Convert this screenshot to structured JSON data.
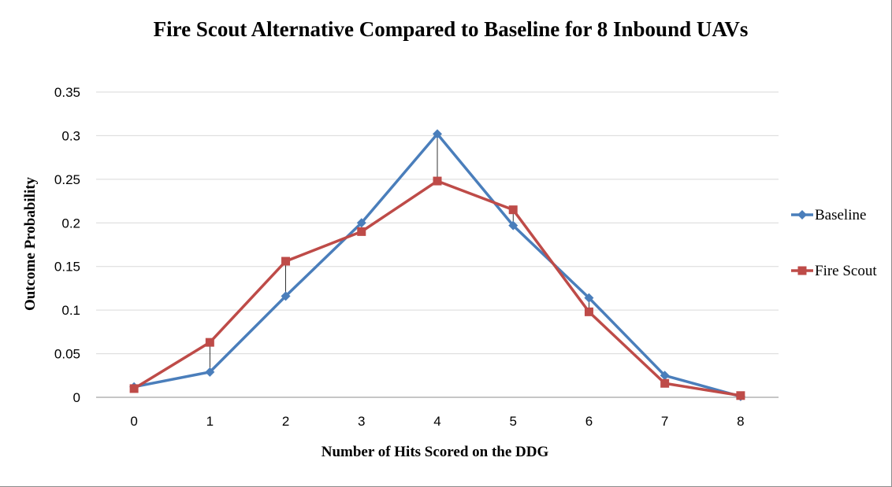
{
  "chart_data": {
    "type": "line",
    "title": "Fire Scout Alternative Compared to Baseline for 8 Inbound UAVs",
    "xlabel": "Number of Hits Scored on the DDG",
    "ylabel": "Outcome Probability",
    "categories": [
      "0",
      "1",
      "2",
      "3",
      "4",
      "5",
      "6",
      "7",
      "8"
    ],
    "ylim": [
      0,
      0.35
    ],
    "yticks": [
      "0",
      "0.05",
      "0.1",
      "0.15",
      "0.2",
      "0.25",
      "0.3",
      "0.35"
    ],
    "grid": true,
    "legend_position": "right",
    "drop_lines": true,
    "series": [
      {
        "name": "Baseline",
        "color": "#4a7ebb",
        "marker": "diamond",
        "values": [
          0.012,
          0.029,
          0.116,
          0.2,
          0.302,
          0.197,
          0.114,
          0.025,
          0.001
        ]
      },
      {
        "name": "Fire Scout",
        "color": "#be4b48",
        "marker": "square",
        "values": [
          0.01,
          0.063,
          0.156,
          0.19,
          0.248,
          0.215,
          0.098,
          0.016,
          0.002
        ]
      }
    ]
  }
}
